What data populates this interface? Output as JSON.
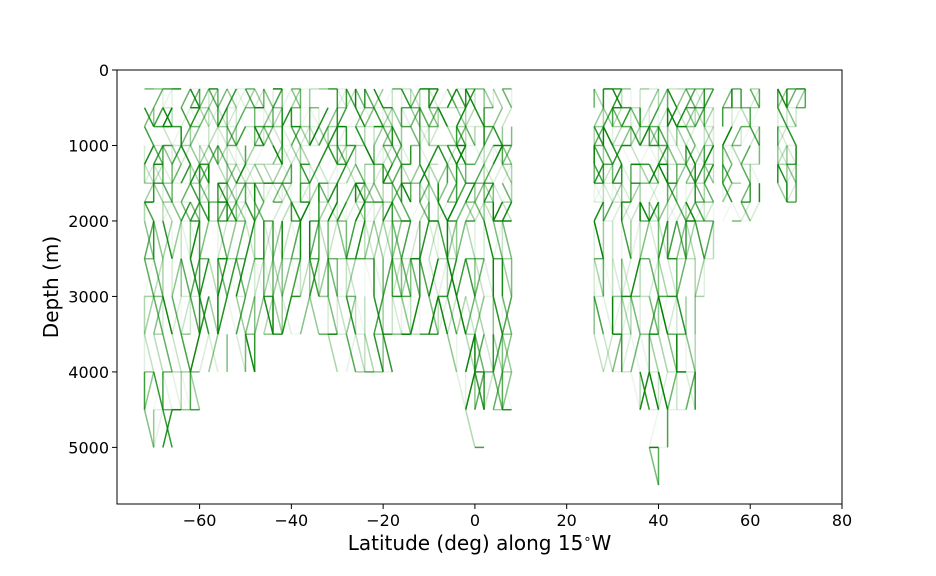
{
  "chart_data": {
    "type": "line",
    "title": "",
    "xlabel": "Latitude (deg) along 15$^\\circ$W",
    "xlabel_text": "Latitude (deg) along 15",
    "xlabel_degree": "∘",
    "xlabel_suffix": "W",
    "ylabel": "Depth (m)",
    "xlim": [
      -78,
      80
    ],
    "ylim": [
      5750,
      0
    ],
    "y_inverted": true,
    "grid": false,
    "x_ticks": [
      -60,
      -40,
      -20,
      0,
      20,
      40,
      60,
      80
    ],
    "x_tick_labels": [
      "−60",
      "−40",
      "−20",
      "0",
      "20",
      "40",
      "60",
      "80"
    ],
    "y_ticks": [
      0,
      1000,
      2000,
      3000,
      4000,
      5000
    ],
    "y_tick_labels": [
      "0",
      "1000",
      "2000",
      "3000",
      "4000",
      "5000"
    ],
    "line_color": "#008000",
    "latitude_spacing_deg": 2,
    "depth_levels_m": [
      250,
      500,
      750,
      1000,
      1250,
      1500,
      1750,
      2000,
      2500,
      3000,
      3500,
      4000,
      4500,
      5000,
      5500
    ],
    "sections": [
      {
        "lat_range": [
          -72,
          8
        ],
        "max_depth_by_lat": [
          {
            "lat": -72,
            "depth": 4500
          },
          {
            "lat": -70,
            "depth": 5000
          },
          {
            "lat": -68,
            "depth": 5000
          },
          {
            "lat": -66,
            "depth": 5000
          },
          {
            "lat": -64,
            "depth": 4500
          },
          {
            "lat": -62,
            "depth": 4500
          },
          {
            "lat": -60,
            "depth": 4500
          },
          {
            "lat": -58,
            "depth": 4000
          },
          {
            "lat": -56,
            "depth": 4000
          },
          {
            "lat": -54,
            "depth": 4000
          },
          {
            "lat": -52,
            "depth": 4000
          },
          {
            "lat": -50,
            "depth": 4000
          },
          {
            "lat": -48,
            "depth": 4000
          },
          {
            "lat": -46,
            "depth": 3500
          },
          {
            "lat": -44,
            "depth": 3500
          },
          {
            "lat": -42,
            "depth": 3500
          },
          {
            "lat": -40,
            "depth": 3500
          },
          {
            "lat": -38,
            "depth": 3500
          },
          {
            "lat": -36,
            "depth": 3500
          },
          {
            "lat": -34,
            "depth": 3500
          },
          {
            "lat": -32,
            "depth": 3500
          },
          {
            "lat": -30,
            "depth": 4000
          },
          {
            "lat": -28,
            "depth": 4000
          },
          {
            "lat": -26,
            "depth": 4000
          },
          {
            "lat": -24,
            "depth": 4000
          },
          {
            "lat": -22,
            "depth": 4000
          },
          {
            "lat": -20,
            "depth": 4000
          },
          {
            "lat": -18,
            "depth": 4000
          },
          {
            "lat": -16,
            "depth": 3500
          },
          {
            "lat": -14,
            "depth": 3500
          },
          {
            "lat": -12,
            "depth": 3500
          },
          {
            "lat": -10,
            "depth": 3500
          },
          {
            "lat": -8,
            "depth": 3500
          },
          {
            "lat": -6,
            "depth": 3500
          },
          {
            "lat": -4,
            "depth": 4000
          },
          {
            "lat": -2,
            "depth": 4500
          },
          {
            "lat": 0,
            "depth": 5000
          },
          {
            "lat": 2,
            "depth": 5000
          },
          {
            "lat": 4,
            "depth": 4500
          },
          {
            "lat": 6,
            "depth": 4500
          },
          {
            "lat": 8,
            "depth": 4500
          }
        ]
      },
      {
        "lat_range": [
          26,
          52
        ],
        "max_depth_by_lat": [
          {
            "lat": 26,
            "depth": 3500
          },
          {
            "lat": 28,
            "depth": 4000
          },
          {
            "lat": 30,
            "depth": 4000
          },
          {
            "lat": 32,
            "depth": 4000
          },
          {
            "lat": 34,
            "depth": 4000
          },
          {
            "lat": 36,
            "depth": 4500
          },
          {
            "lat": 38,
            "depth": 5000
          },
          {
            "lat": 40,
            "depth": 5500
          },
          {
            "lat": 42,
            "depth": 5000
          },
          {
            "lat": 44,
            "depth": 4500
          },
          {
            "lat": 46,
            "depth": 4500
          },
          {
            "lat": 48,
            "depth": 4500
          },
          {
            "lat": 50,
            "depth": 3000
          },
          {
            "lat": 52,
            "depth": 2500
          }
        ]
      },
      {
        "lat_range": [
          54,
          62
        ],
        "max_depth_by_lat": [
          {
            "lat": 54,
            "depth": 2000
          },
          {
            "lat": 56,
            "depth": 2000
          },
          {
            "lat": 58,
            "depth": 2000
          },
          {
            "lat": 60,
            "depth": 2000
          },
          {
            "lat": 62,
            "depth": 2000
          }
        ]
      },
      {
        "lat_range": [
          66,
          72
        ],
        "max_depth_by_lat": [
          {
            "lat": 66,
            "depth": 1500
          },
          {
            "lat": 68,
            "depth": 1750
          },
          {
            "lat": 70,
            "depth": 1750
          },
          {
            "lat": 72,
            "depth": 500
          }
        ]
      }
    ]
  }
}
